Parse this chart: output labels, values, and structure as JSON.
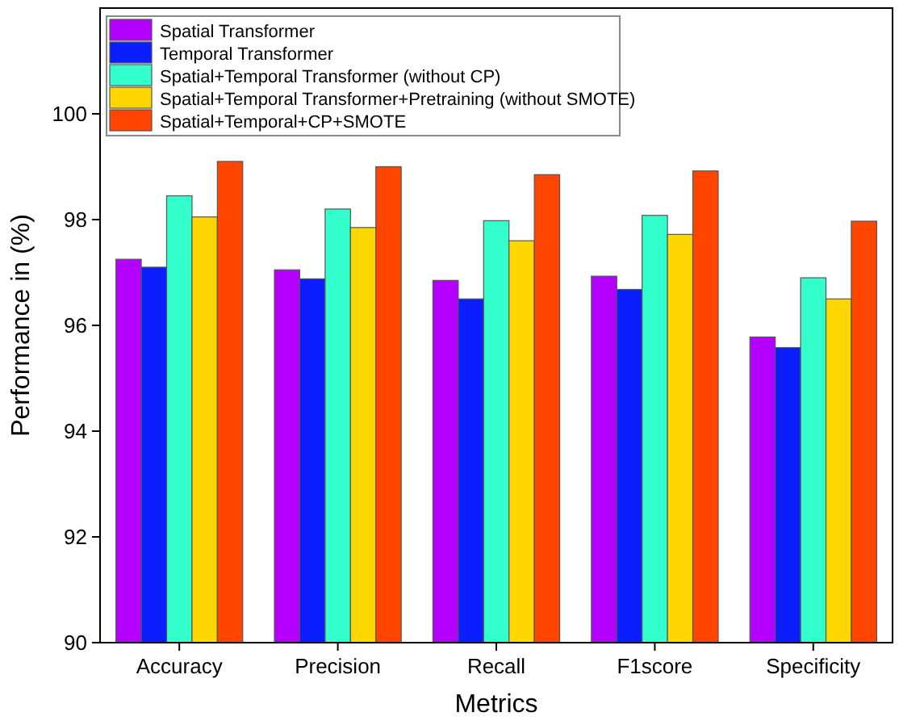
{
  "chart_data": {
    "type": "bar",
    "xlabel": "Metrics",
    "ylabel": "Performance in (%)",
    "categories": [
      "Accuracy",
      "Precision",
      "Recall",
      "F1score",
      "Specificity"
    ],
    "series": [
      {
        "name": "Spatial Transformer",
        "color": "#b400ff",
        "values": [
          97.25,
          97.05,
          96.85,
          96.93,
          95.78
        ]
      },
      {
        "name": "Temporal Transformer",
        "color": "#0a1eff",
        "values": [
          97.1,
          96.88,
          96.5,
          96.68,
          95.58
        ]
      },
      {
        "name": "Spatial+Temporal Transformer (without CP)",
        "color": "#33ffcc",
        "values": [
          98.45,
          98.2,
          97.98,
          98.08,
          96.9
        ]
      },
      {
        "name": "Spatial+Temporal Transformer+Pretraining (without SMOTE)",
        "color": "#ffd700",
        "values": [
          98.05,
          97.85,
          97.6,
          97.72,
          96.5
        ]
      },
      {
        "name": "Spatial+Temporal+CP+SMOTE",
        "color": "#ff4500",
        "values": [
          99.1,
          99.0,
          98.85,
          98.92,
          97.97
        ]
      }
    ],
    "ylim": [
      90,
      102
    ],
    "yticks": [
      90,
      92,
      94,
      96,
      98,
      100
    ],
    "grid": false,
    "legend": "top left"
  }
}
